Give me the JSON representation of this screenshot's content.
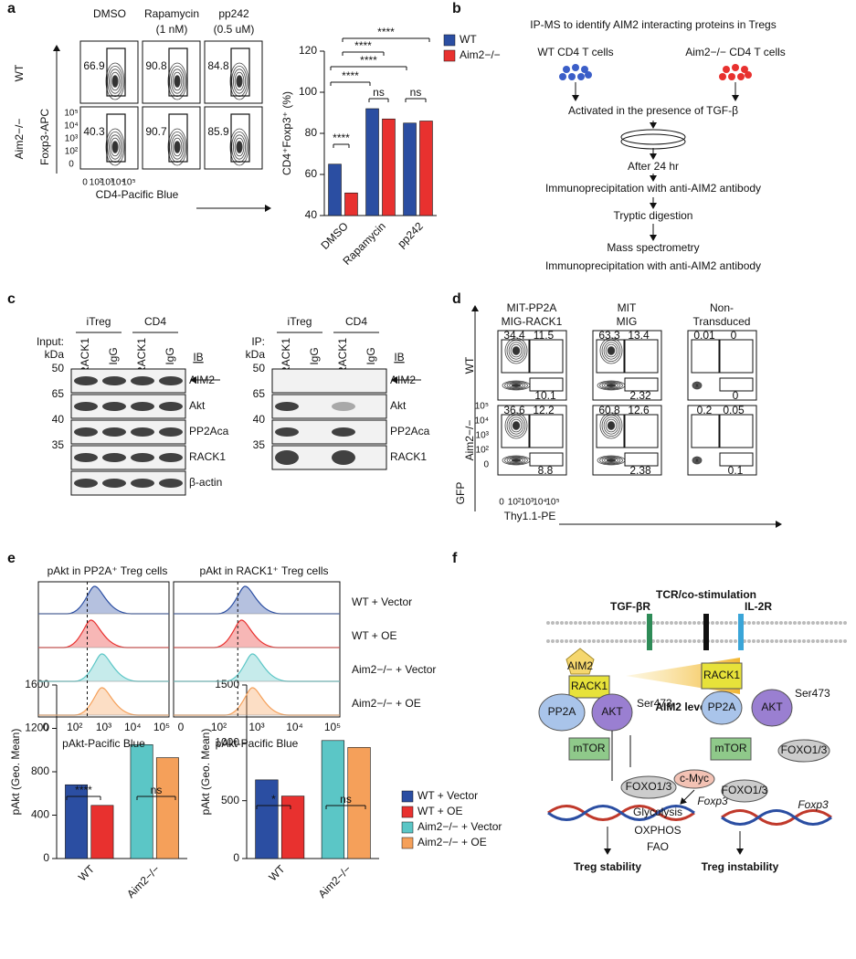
{
  "panel_labels": [
    "a",
    "b",
    "c",
    "d",
    "e",
    "f"
  ],
  "flow_a": {
    "columns": [
      [
        "DMSO"
      ],
      [
        "Rapamycin",
        "(1 nM)"
      ],
      [
        "pp242",
        "(0.5 uM)"
      ]
    ],
    "rows": [
      "WT",
      "Aim2−/−"
    ],
    "values": [
      [
        66.9,
        90.8,
        84.8
      ],
      [
        40.3,
        90.7,
        85.9
      ]
    ],
    "y_axis": "Foxp3-APC",
    "x_axis": "CD4-Pacific Blue",
    "yticks": [
      "10⁵",
      "10⁴",
      "10³",
      "10²",
      "0"
    ],
    "xticks": [
      "0",
      "10²",
      "10³",
      "10⁴",
      "10⁵"
    ]
  },
  "chart_data": [
    {
      "type": "bar",
      "ylabel": "CD4⁺Foxp3⁺ (%)",
      "categories": [
        "DMSO",
        "Rapamycin",
        "pp242"
      ],
      "series": [
        {
          "name": "WT",
          "color": "#2b4ea2",
          "values": [
            65,
            92,
            85
          ]
        },
        {
          "name": "Aim2−/−",
          "color": "#e8312f",
          "values": [
            51,
            87,
            86
          ]
        }
      ],
      "ylim": [
        40,
        120
      ],
      "yticks": [
        40,
        60,
        80,
        100,
        120
      ],
      "annotations": [
        "****",
        "****",
        "****",
        "****",
        "****",
        "ns",
        "ns"
      ]
    },
    {
      "type": "bar",
      "ylabel": "pAkt (Geo. Mean)",
      "categories": [
        "WT",
        "Aim2−/−"
      ],
      "series": [
        {
          "color": "#2b4ea2",
          "values": [
            680,
            null
          ]
        },
        {
          "color": "#e8312f",
          "values": [
            490,
            null
          ]
        },
        {
          "color": "#5bc6c6",
          "values": [
            null,
            1050
          ]
        },
        {
          "color": "#f5a05a",
          "values": [
            null,
            930
          ]
        }
      ],
      "ylim": [
        0,
        1600
      ],
      "yticks": [
        0,
        400,
        800,
        1200,
        1600
      ],
      "annotations": [
        "****",
        "ns"
      ]
    },
    {
      "type": "bar",
      "ylabel": "pAkt (Geo. Mean)",
      "categories": [
        "WT",
        "Aim2−/−"
      ],
      "series": [
        {
          "name": "WT + Vector",
          "color": "#2b4ea2",
          "values": [
            680,
            null
          ]
        },
        {
          "name": "WT + OE",
          "color": "#e8312f",
          "values": [
            540,
            null
          ]
        },
        {
          "name": "Aim2−/− + Vector",
          "color": "#5bc6c6",
          "values": [
            null,
            1020
          ]
        },
        {
          "name": "Aim2−/− + OE",
          "color": "#f5a05a",
          "values": [
            null,
            960
          ]
        }
      ],
      "ylim": [
        0,
        1500
      ],
      "yticks": [
        0,
        500,
        1000,
        1500
      ],
      "annotations": [
        "*",
        "ns"
      ]
    }
  ],
  "panel_b": {
    "title": "IP-MS to identify AIM2 interacting proteins in Tregs",
    "left": "WT CD4 T cells",
    "right": "Aim2−/−  CD4 T cells",
    "steps": [
      "Activated in the presence of TGF-β",
      "After 24 hr",
      "Immunoprecipitation with anti-AIM2 antibody",
      "Tryptic digestion",
      "Mass spectrometry",
      "Immunoprecipitation with anti-AIM2 antibody"
    ]
  },
  "panel_c": {
    "groups": [
      "iTreg",
      "CD4"
    ],
    "lanes": [
      "RACK1",
      "IgG",
      "RACK1",
      "IgG"
    ],
    "ib": "IB",
    "left": {
      "head": [
        "Input:",
        "kDa"
      ],
      "bands": [
        {
          "kda": "50",
          "name": "AIM2"
        },
        {
          "kda": "65",
          "name": "Akt"
        },
        {
          "kda": "40",
          "name": "PP2Aca"
        },
        {
          "kda": "35",
          "name": "RACK1"
        },
        {
          "kda": "",
          "name": "β-actin"
        }
      ]
    },
    "right": {
      "head": [
        "IP:",
        "kDa"
      ],
      "bands": [
        {
          "kda": "50",
          "name": "AIM2"
        },
        {
          "kda": "65",
          "name": "Akt"
        },
        {
          "kda": "40",
          "name": "PP2Aca"
        },
        {
          "kda": "35",
          "name": "RACK1"
        }
      ]
    }
  },
  "panel_d": {
    "columns": [
      [
        "MIT-PP2A",
        "MIG-RACK1"
      ],
      [
        "MIT",
        "MIG"
      ],
      [
        "Non-",
        "Transduced"
      ]
    ],
    "rows": [
      "WT",
      "Aim2−/−"
    ],
    "values": [
      [
        [
          34.4,
          11.5,
          10.1
        ],
        [
          63.3,
          13.4,
          2.32
        ],
        [
          0.01,
          0,
          0
        ]
      ],
      [
        [
          36.6,
          12.2,
          8.8
        ],
        [
          60.8,
          12.6,
          2.38
        ],
        [
          0.2,
          0.05,
          0.1
        ]
      ]
    ],
    "y_axis": "GFP",
    "x_axis": "Thy1.1-PE",
    "yticks": [
      "10⁵",
      "10⁴",
      "10³",
      "10²",
      "0"
    ],
    "xticks": [
      "0",
      "10²",
      "10³",
      "10⁴",
      "10⁵"
    ]
  },
  "panel_e": {
    "titles": [
      "pAkt in PP2A⁺ Treg cells",
      "pAkt in RACK1⁺ Treg cells"
    ],
    "tracks": [
      "WT + Vector",
      "WT + OE",
      "Aim2−/− + Vector",
      "Aim2−/− + OE"
    ],
    "x_axis": "pAkt-Pacific Blue",
    "xticks": [
      "0",
      "10²",
      "10³",
      "10⁴",
      "10⁵"
    ]
  },
  "panel_f": {
    "membrane": [
      "TCR/co-stimulation",
      "TGF-βR",
      "IL-2R"
    ],
    "gradient": "AIM2 levels",
    "left": [
      "AIM2",
      "RACK1",
      "PP2A",
      "AKT",
      "Ser473",
      "mTOR",
      "FOXO1/3",
      "Foxp3",
      "Treg stability"
    ],
    "right": [
      "RACK1",
      "PP2A",
      "AKT",
      "Ser473",
      "mTOR",
      "FOXO1/3",
      "c-Myc",
      "FOXO1/3",
      "Foxp3",
      "Glycolysis",
      "OXPHOS",
      "FAO",
      "Treg instability"
    ]
  }
}
